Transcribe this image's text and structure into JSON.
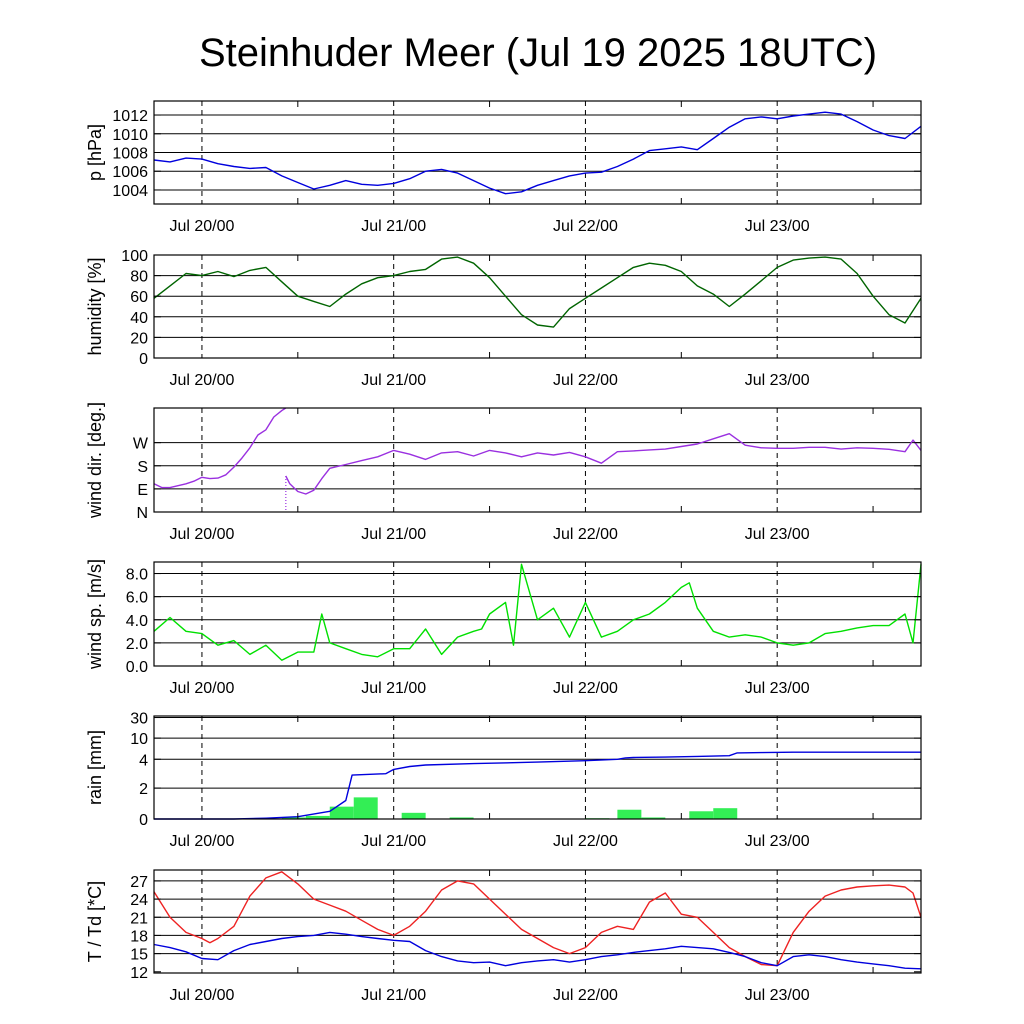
{
  "title": "Steinhuder Meer (Jul 19 2025 18UTC)",
  "chart_data": [
    {
      "type": "line",
      "ylabel": "p [hPa]",
      "x_tick_labels": [
        "Jul 20/00",
        "Jul 21/00",
        "Jul 22/00",
        "Jul 23/00"
      ],
      "x_hours_start": 0,
      "x_hours_end": 96,
      "ylim": [
        1002.5,
        1013.5
      ],
      "ytick_values": [
        1004,
        1006,
        1008,
        1010,
        1012
      ],
      "ytick_labels": [
        "1004",
        "1006",
        "1008",
        "1010",
        "1012"
      ],
      "grid_values": [
        1004,
        1006,
        1008,
        1010,
        1012
      ],
      "series": [
        {
          "color": "#0000dd",
          "x": [
            0,
            2,
            4,
            6,
            8,
            10,
            12,
            14,
            16,
            18,
            20,
            22,
            24,
            26,
            28,
            30,
            32,
            34,
            36,
            38,
            40,
            42,
            44,
            46,
            48,
            50,
            52,
            54,
            56,
            58,
            60,
            62,
            64,
            66,
            68,
            70,
            72,
            74,
            76,
            78,
            80,
            82,
            84,
            86,
            88,
            90,
            92,
            94,
            96
          ],
          "y": [
            1007.2,
            1007.0,
            1007.4,
            1007.3,
            1006.8,
            1006.5,
            1006.3,
            1006.4,
            1005.5,
            1004.8,
            1004.1,
            1004.5,
            1005.0,
            1004.6,
            1004.5,
            1004.7,
            1005.2,
            1006.0,
            1006.2,
            1005.8,
            1005.0,
            1004.2,
            1003.6,
            1003.8,
            1004.5,
            1005.0,
            1005.5,
            1005.8,
            1005.9,
            1006.5,
            1007.3,
            1008.2,
            1008.4,
            1008.6,
            1008.3,
            1009.5,
            1010.7,
            1011.6,
            1011.8,
            1011.6,
            1011.9,
            1012.1,
            1012.3,
            1012.1,
            1011.3,
            1010.4,
            1009.8,
            1009.5,
            1010.8
          ]
        }
      ]
    },
    {
      "type": "line",
      "ylabel": "humidity [%]",
      "x_tick_labels": [
        "Jul 20/00",
        "Jul 21/00",
        "Jul 22/00",
        "Jul 23/00"
      ],
      "x_hours_start": 0,
      "x_hours_end": 96,
      "ylim": [
        0,
        100
      ],
      "ytick_values": [
        0,
        20,
        40,
        60,
        80,
        100
      ],
      "ytick_labels": [
        "0",
        "20",
        "40",
        "60",
        "80",
        "100"
      ],
      "grid_values": [
        20,
        40,
        60,
        80
      ],
      "series": [
        {
          "color": "#006400",
          "x": [
            0,
            2,
            4,
            6,
            8,
            10,
            12,
            14,
            16,
            18,
            20,
            22,
            24,
            26,
            28,
            30,
            32,
            34,
            36,
            38,
            40,
            42,
            44,
            46,
            48,
            50,
            52,
            54,
            56,
            58,
            60,
            62,
            64,
            66,
            68,
            70,
            72,
            74,
            76,
            78,
            80,
            82,
            84,
            86,
            88,
            90,
            92,
            94,
            96
          ],
          "y": [
            58,
            70,
            82,
            80,
            84,
            79,
            85,
            88,
            74,
            60,
            55,
            50,
            62,
            72,
            78,
            80,
            84,
            86,
            96,
            98,
            92,
            78,
            60,
            42,
            32,
            30,
            48,
            58,
            68,
            78,
            88,
            92,
            90,
            84,
            70,
            62,
            50,
            62,
            75,
            88,
            95,
            97,
            98,
            96,
            82,
            60,
            42,
            34,
            58
          ]
        }
      ]
    },
    {
      "type": "line",
      "ylabel": "wind dir. [deg.]",
      "x_tick_labels": [
        "Jul 20/00",
        "Jul 21/00",
        "Jul 22/00",
        "Jul 23/00"
      ],
      "x_hours_start": 0,
      "x_hours_end": 96,
      "ylim": [
        0,
        405
      ],
      "ytick_values": [
        0,
        90,
        180,
        270
      ],
      "ytick_labels": [
        "N",
        "E",
        "S",
        "W"
      ],
      "grid_values": [
        90,
        180,
        270
      ],
      "series": [
        {
          "color": "#9a30e0",
          "name": "",
          "x": [
            0,
            1,
            2,
            4,
            5,
            6,
            7,
            8,
            9,
            10,
            11,
            12,
            13,
            14,
            15,
            16,
            16.5
          ],
          "y": [
            110,
            95,
            95,
            110,
            120,
            135,
            130,
            132,
            145,
            175,
            210,
            250,
            300,
            320,
            370,
            395,
            405
          ]
        },
        {
          "color": "#9a30e0",
          "name": "",
          "x": [
            16.5,
            17,
            18,
            19,
            20,
            21,
            22,
            24,
            26,
            28,
            30,
            32,
            34,
            36,
            38,
            40,
            42,
            44,
            46,
            48,
            50,
            52,
            54,
            56,
            58,
            60,
            62,
            64,
            66,
            68,
            70,
            72,
            74,
            76,
            78,
            80,
            82,
            84,
            86,
            88,
            90,
            92,
            94,
            95,
            96
          ],
          "y": [
            140,
            110,
            80,
            70,
            85,
            130,
            170,
            185,
            200,
            215,
            240,
            225,
            205,
            230,
            235,
            218,
            240,
            230,
            215,
            230,
            222,
            232,
            215,
            190,
            235,
            238,
            242,
            245,
            255,
            265,
            285,
            305,
            260,
            250,
            248,
            248,
            252,
            252,
            245,
            250,
            248,
            244,
            235,
            280,
            240
          ]
        }
      ]
    },
    {
      "type": "line",
      "ylabel": "wind sp. [m/s]",
      "x_tick_labels": [
        "Jul 20/00",
        "Jul 21/00",
        "Jul 22/00",
        "Jul 23/00"
      ],
      "x_hours_start": 0,
      "x_hours_end": 96,
      "ylim": [
        0,
        9
      ],
      "ytick_values": [
        0,
        2,
        4,
        6,
        8
      ],
      "ytick_labels": [
        "0.0",
        "2.0",
        "4.0",
        "6.0",
        "8.0"
      ],
      "grid_values": [
        2,
        4,
        6,
        8
      ],
      "series": [
        {
          "color": "#00e000",
          "x": [
            0,
            2,
            4,
            6,
            8,
            10,
            12,
            14,
            16,
            18,
            20,
            21,
            22,
            24,
            26,
            28,
            30,
            32,
            34,
            36,
            38,
            40,
            41,
            42,
            44,
            45,
            46,
            48,
            50,
            52,
            54,
            56,
            58,
            60,
            62,
            64,
            66,
            67,
            68,
            70,
            72,
            74,
            76,
            78,
            80,
            82,
            84,
            86,
            88,
            90,
            92,
            94,
            95,
            96
          ],
          "y": [
            3.0,
            4.2,
            3.0,
            2.8,
            1.8,
            2.2,
            1.0,
            1.8,
            0.5,
            1.2,
            1.2,
            4.5,
            2.0,
            1.5,
            1.0,
            0.8,
            1.5,
            1.5,
            3.2,
            1.0,
            2.5,
            3.0,
            3.2,
            4.5,
            5.5,
            1.8,
            8.8,
            4.0,
            5.0,
            2.5,
            5.5,
            2.5,
            3.0,
            4.0,
            4.5,
            5.5,
            6.8,
            7.2,
            5.0,
            3.0,
            2.5,
            2.7,
            2.5,
            2.0,
            1.8,
            2.0,
            2.8,
            3.0,
            3.3,
            3.5,
            3.5,
            4.5,
            2.0,
            8.8
          ]
        }
      ]
    },
    {
      "type": "bar",
      "ylabel": "rain [mm]",
      "x_tick_labels": [
        "Jul 20/00",
        "Jul 21/00",
        "Jul 22/00",
        "Jul 23/00"
      ],
      "x_hours_start": 0,
      "x_hours_end": 96,
      "scale": "log-like",
      "ytick_values": [
        0,
        2,
        4,
        10,
        30
      ],
      "ytick_labels": [
        "0",
        "2",
        "4",
        "10",
        "30"
      ],
      "grid_values": [
        2,
        4,
        10,
        30
      ],
      "bars": {
        "color": "#33ee55",
        "x_start": [
          16,
          19,
          22,
          25,
          31,
          37,
          54,
          58,
          61,
          67,
          70
        ],
        "x_end": [
          19,
          22,
          25,
          28,
          34,
          40,
          57,
          61,
          64,
          70,
          73
        ],
        "values": [
          0.1,
          0.2,
          0.8,
          1.4,
          0.4,
          0.1,
          0.05,
          0.6,
          0.1,
          0.5,
          0.7
        ]
      },
      "series": [
        {
          "color": "#0000dd",
          "x": [
            0,
            10,
            14,
            18,
            22,
            24,
            24.3,
            24.8,
            29,
            30,
            32,
            34,
            40,
            48,
            54,
            58,
            59,
            60,
            64,
            68,
            72,
            73,
            76,
            80,
            90,
            96
          ],
          "y": [
            0,
            0,
            0.05,
            0.15,
            0.5,
            1.2,
            1.8,
            2.9,
            3.0,
            3.3,
            3.5,
            3.6,
            3.7,
            3.8,
            3.9,
            4.0,
            4.4,
            4.5,
            4.6,
            4.8,
            5.0,
            5.8,
            5.9,
            6.0,
            6.0,
            6.0
          ]
        }
      ]
    },
    {
      "type": "line",
      "ylabel": "T / Td [*C]",
      "x_tick_labels": [
        "Jul 20/00",
        "Jul 21/00",
        "Jul 22/00",
        "Jul 23/00"
      ],
      "x_hours_start": 0,
      "x_hours_end": 96,
      "ylim": [
        11.8,
        28.8
      ],
      "ytick_values": [
        12,
        15,
        18,
        21,
        24,
        27
      ],
      "ytick_labels": [
        "12",
        "15",
        "18",
        "21",
        "24",
        "27"
      ],
      "grid_values": [
        15,
        18,
        21,
        24,
        27
      ],
      "series": [
        {
          "color": "#ee2222",
          "x": [
            0,
            2,
            4,
            6,
            7,
            8,
            10,
            12,
            14,
            16,
            18,
            20,
            22,
            24,
            26,
            28,
            30,
            32,
            34,
            36,
            38,
            40,
            42,
            44,
            46,
            48,
            50,
            52,
            54,
            56,
            58,
            60,
            62,
            64,
            66,
            68,
            70,
            72,
            74,
            76,
            78,
            80,
            82,
            84,
            86,
            88,
            90,
            92,
            94,
            95,
            96
          ],
          "y": [
            25.2,
            21.0,
            18.5,
            17.5,
            16.8,
            17.5,
            19.5,
            24.5,
            27.5,
            28.5,
            26.5,
            24.0,
            23.0,
            22.0,
            20.5,
            19.0,
            18.0,
            19.5,
            22.0,
            25.5,
            27.0,
            26.5,
            24.0,
            21.5,
            19.0,
            17.5,
            16.0,
            15.0,
            16.0,
            18.5,
            19.5,
            19.0,
            23.5,
            25.0,
            21.5,
            21.0,
            18.5,
            16.0,
            14.5,
            13.2,
            13.0,
            18.5,
            22.0,
            24.5,
            25.5,
            26.0,
            26.2,
            26.3,
            26.0,
            25.0,
            21.0
          ]
        },
        {
          "color": "#0000dd",
          "x": [
            0,
            2,
            4,
            6,
            8,
            10,
            12,
            14,
            16,
            18,
            20,
            22,
            24,
            26,
            28,
            30,
            32,
            34,
            36,
            38,
            40,
            42,
            44,
            46,
            48,
            50,
            52,
            54,
            56,
            58,
            60,
            62,
            64,
            66,
            68,
            70,
            72,
            74,
            76,
            78,
            80,
            82,
            84,
            86,
            88,
            90,
            92,
            94,
            96
          ],
          "y": [
            16.5,
            16.0,
            15.3,
            14.2,
            14.0,
            15.5,
            16.5,
            17.0,
            17.5,
            17.8,
            18.0,
            18.5,
            18.2,
            17.8,
            17.5,
            17.2,
            17.0,
            15.5,
            14.5,
            13.8,
            13.5,
            13.6,
            13.0,
            13.5,
            13.8,
            14.0,
            13.6,
            14.0,
            14.5,
            14.8,
            15.2,
            15.5,
            15.8,
            16.2,
            16.0,
            15.8,
            15.2,
            14.5,
            13.5,
            13.0,
            14.5,
            14.8,
            14.5,
            14.0,
            13.6,
            13.3,
            13.0,
            12.6,
            12.5
          ]
        }
      ]
    }
  ]
}
